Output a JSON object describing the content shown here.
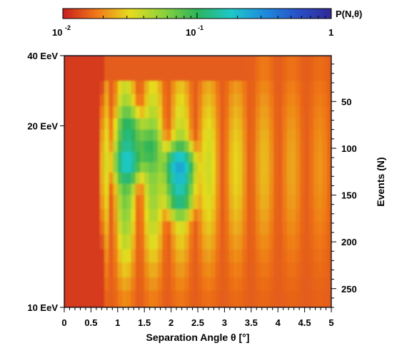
{
  "chart_data": {
    "type": "heatmap",
    "title": "",
    "colorbar": {
      "label": "P(N,θ)",
      "scale": "log",
      "range": [
        0.01,
        1
      ],
      "tick_labels": [
        {
          "value": 0.01,
          "base": "10",
          "exp": "-2"
        },
        {
          "value": 0.1,
          "base": "10",
          "exp": "-1"
        },
        {
          "value": 1,
          "base": "1",
          "exp": ""
        }
      ],
      "colors": [
        "#c81e1e",
        "#f07818",
        "#e6dc1e",
        "#8cd23c",
        "#2db45a",
        "#1ec8c8",
        "#1e8cdc",
        "#2850c8",
        "#322896"
      ]
    },
    "xaxis": {
      "label": "Separation Angle θ [°]",
      "range": [
        0,
        5
      ],
      "ticks": [
        "0",
        "0.5",
        "1",
        "1.5",
        "2",
        "2.5",
        "3",
        "3.5",
        "4",
        "4.5",
        "5"
      ]
    },
    "yaxis_right": {
      "label": "Events  (N)",
      "range": [
        270,
        1
      ],
      "ticks": [
        "50",
        "100",
        "150",
        "200",
        "250"
      ]
    },
    "yaxis_left": {
      "label": "",
      "ticks": [
        {
          "label": "40 EeV",
          "n": 1
        },
        {
          "label": "20 EeV",
          "n": 76
        },
        {
          "label": "10 EeV",
          "n": 270
        }
      ]
    },
    "background_value": 0.012,
    "data_start_angle": 0.8,
    "hotspots": [
      {
        "theta": 1.2,
        "n": 115,
        "value": 0.12
      },
      {
        "theta": 2.15,
        "n": 120,
        "value": 0.2
      },
      {
        "theta": 2.15,
        "n": 150,
        "value": 0.1
      },
      {
        "theta": 1.25,
        "n": 80,
        "value": 0.06
      },
      {
        "theta": 1.55,
        "n": 100,
        "value": 0.05
      }
    ]
  }
}
